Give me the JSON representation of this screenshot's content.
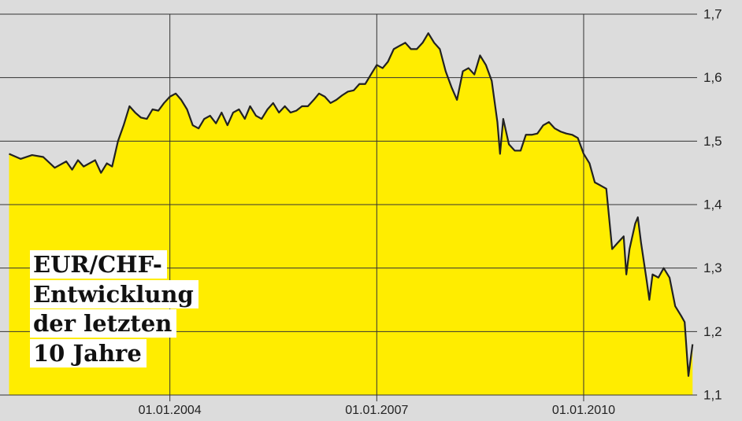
{
  "chart_data": {
    "type": "area",
    "title": [
      "EUR/CHF-",
      "Entwicklung",
      "der letzten",
      "10 Jahre"
    ],
    "x": [
      "01.09.2001",
      "01.11.2001",
      "01.01.2002",
      "01.03.2002",
      "01.05.2002",
      "01.07.2002",
      "01.08.2002",
      "01.09.2002",
      "01.10.2002",
      "01.12.2002",
      "01.01.2003",
      "01.02.2003",
      "01.03.2003",
      "01.04.2003",
      "01.05.2003",
      "01.06.2003",
      "01.07.2003",
      "01.08.2003",
      "01.09.2003",
      "01.10.2003",
      "01.11.2003",
      "01.12.2003",
      "01.01.2004",
      "01.02.2004",
      "01.03.2004",
      "01.04.2004",
      "01.05.2004",
      "01.06.2004",
      "01.07.2004",
      "01.08.2004",
      "01.09.2004",
      "01.10.2004",
      "01.11.2004",
      "01.12.2004",
      "01.01.2005",
      "01.02.2005",
      "01.03.2005",
      "01.04.2005",
      "01.05.2005",
      "01.06.2005",
      "01.07.2005",
      "01.08.2005",
      "01.09.2005",
      "01.10.2005",
      "01.11.2005",
      "01.12.2005",
      "01.01.2006",
      "01.02.2006",
      "01.03.2006",
      "01.04.2006",
      "01.05.2006",
      "01.06.2006",
      "01.07.2006",
      "01.08.2006",
      "01.09.2006",
      "01.10.2006",
      "01.11.2006",
      "01.12.2006",
      "01.01.2007",
      "01.02.2007",
      "01.03.2007",
      "01.04.2007",
      "01.05.2007",
      "01.06.2007",
      "01.07.2007",
      "01.08.2007",
      "01.09.2007",
      "01.10.2007",
      "01.11.2007",
      "01.12.2007",
      "01.01.2008",
      "01.02.2008",
      "01.03.2008",
      "01.04.2008",
      "01.05.2008",
      "01.06.2008",
      "01.07.2008",
      "01.08.2008",
      "01.09.2008",
      "01.10.2008",
      "15.10.2008",
      "01.11.2008",
      "01.12.2008",
      "01.01.2009",
      "01.02.2009",
      "01.03.2009",
      "01.04.2009",
      "01.05.2009",
      "01.06.2009",
      "01.07.2009",
      "01.08.2009",
      "01.09.2009",
      "01.10.2009",
      "01.11.2009",
      "01.12.2009",
      "01.01.2010",
      "01.02.2010",
      "01.03.2010",
      "01.04.2010",
      "01.05.2010",
      "01.06.2010",
      "01.07.2010",
      "01.08.2010",
      "15.08.2010",
      "01.09.2010",
      "01.10.2010",
      "15.10.2010",
      "01.11.2010",
      "01.12.2010",
      "15.12.2010",
      "01.01.2011",
      "01.02.2011",
      "01.03.2011",
      "01.04.2011",
      "01.05.2011",
      "01.06.2011",
      "20.06.2011",
      "10.07.2011",
      "01.08.2011"
    ],
    "values": [
      1.48,
      1.472,
      1.478,
      1.475,
      1.458,
      1.468,
      1.455,
      1.47,
      1.46,
      1.47,
      1.45,
      1.465,
      1.46,
      1.5,
      1.525,
      1.555,
      1.545,
      1.537,
      1.535,
      1.55,
      1.548,
      1.56,
      1.57,
      1.575,
      1.565,
      1.55,
      1.525,
      1.52,
      1.535,
      1.54,
      1.528,
      1.545,
      1.525,
      1.545,
      1.55,
      1.535,
      1.555,
      1.54,
      1.535,
      1.55,
      1.56,
      1.545,
      1.555,
      1.545,
      1.548,
      1.555,
      1.555,
      1.565,
      1.575,
      1.57,
      1.56,
      1.565,
      1.572,
      1.578,
      1.58,
      1.59,
      1.59,
      1.605,
      1.62,
      1.615,
      1.625,
      1.645,
      1.65,
      1.655,
      1.645,
      1.645,
      1.655,
      1.67,
      1.655,
      1.645,
      1.61,
      1.585,
      1.565,
      1.61,
      1.615,
      1.605,
      1.635,
      1.62,
      1.595,
      1.53,
      1.48,
      1.535,
      1.495,
      1.485,
      1.485,
      1.51,
      1.51,
      1.512,
      1.525,
      1.53,
      1.52,
      1.515,
      1.512,
      1.51,
      1.505,
      1.48,
      1.465,
      1.435,
      1.43,
      1.425,
      1.33,
      1.34,
      1.35,
      1.29,
      1.33,
      1.37,
      1.38,
      1.34,
      1.28,
      1.25,
      1.29,
      1.285,
      1.3,
      1.285,
      1.24,
      1.225,
      1.215,
      1.13,
      1.18
    ],
    "color": "#ffed00",
    "line_color": "#222222",
    "xlim": [
      "15.07.2001",
      "25.08.2011"
    ],
    "xticks": [
      "01.01.2004",
      "01.01.2007",
      "01.01.2010"
    ],
    "ylim": [
      1.1,
      1.7
    ],
    "yticks": [
      {
        "value": 1.1,
        "label": "1,1"
      },
      {
        "value": 1.2,
        "label": "1,2"
      },
      {
        "value": 1.3,
        "label": "1,3"
      },
      {
        "value": 1.4,
        "label": "1,4"
      },
      {
        "value": 1.5,
        "label": "1,5"
      },
      {
        "value": 1.6,
        "label": "1,6"
      },
      {
        "value": 1.7,
        "label": "1,7"
      }
    ],
    "grid": true
  }
}
